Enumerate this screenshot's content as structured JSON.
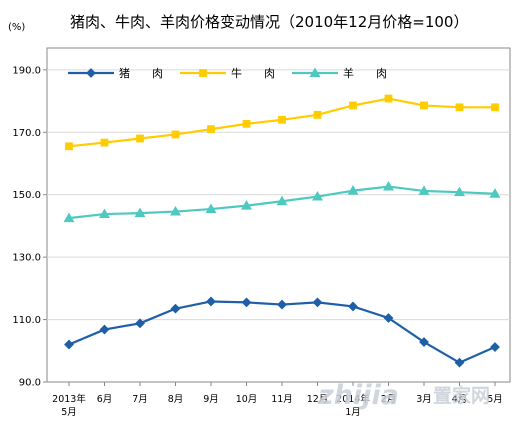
{
  "chart_data": {
    "type": "line",
    "title": "猪肉、牛肉、羊肉价格变动情况（2010年12月价格=100）",
    "ylabel": "(%)",
    "ylim": [
      90,
      190
    ],
    "yticks": [
      "190.0",
      "170.0",
      "150.0",
      "130.0",
      "110.0",
      "90.0"
    ],
    "yticks_values": [
      190,
      170,
      150,
      130,
      110,
      90
    ],
    "categories": [
      [
        "2013年",
        "5月"
      ],
      [
        "6月"
      ],
      [
        "7月"
      ],
      [
        "8月"
      ],
      [
        "9月"
      ],
      [
        "10月"
      ],
      [
        "11月"
      ],
      [
        "12月"
      ],
      [
        "2014年",
        "1月"
      ],
      [
        "2月"
      ],
      [
        "3月"
      ],
      [
        "4月"
      ],
      [
        "5月"
      ]
    ],
    "legend_position": "top-left",
    "series": [
      {
        "name": "猪　　肉",
        "color": "#1f5fa8",
        "marker": "diamond",
        "values": [
          102.0,
          106.8,
          108.8,
          113.5,
          115.8,
          115.5,
          114.8,
          115.5,
          114.2,
          110.5,
          102.8,
          96.2,
          101.2
        ]
      },
      {
        "name": "牛　　肉",
        "color": "#ffcc00",
        "marker": "square",
        "values": [
          165.5,
          166.7,
          168.0,
          169.3,
          171.0,
          172.7,
          174.0,
          175.6,
          178.6,
          180.8,
          178.6,
          178.0,
          178.0
        ]
      },
      {
        "name": "羊　　肉",
        "color": "#4ec9c0",
        "marker": "triangle",
        "values": [
          142.5,
          143.8,
          144.1,
          144.6,
          145.4,
          146.5,
          147.9,
          149.4,
          151.3,
          152.6,
          151.2,
          150.8,
          150.3
        ]
      }
    ]
  },
  "watermark": {
    "brand": "zhijia",
    "suffix": "置家网"
  }
}
